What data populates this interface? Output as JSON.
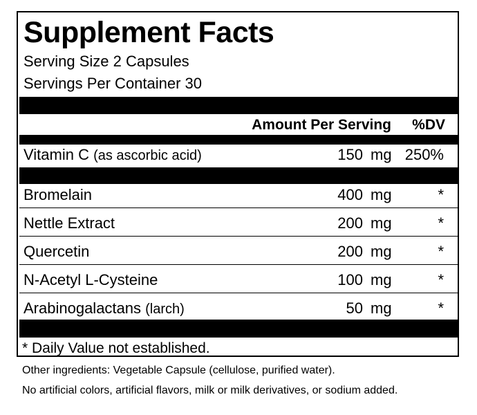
{
  "label": {
    "title": "Supplement Facts",
    "serving_size": "Serving Size 2 Capsules",
    "servings_per_container": "Servings Per Container 30",
    "header_amount": "Amount Per Serving",
    "header_dv": "%DV",
    "vitamin": {
      "name": "Vitamin C",
      "sub": "(as ascorbic acid)",
      "amount": "150",
      "unit": "mg",
      "dv": "250%"
    },
    "ingredients": [
      {
        "name": "Bromelain",
        "sub": "",
        "amount": "400",
        "unit": "mg",
        "dv": "*"
      },
      {
        "name": "Nettle Extract",
        "sub": "",
        "amount": "200",
        "unit": "mg",
        "dv": "*"
      },
      {
        "name": "Quercetin",
        "sub": "",
        "amount": "200",
        "unit": "mg",
        "dv": "*"
      },
      {
        "name": "N-Acetyl L-Cysteine",
        "sub": "",
        "amount": "100",
        "unit": "mg",
        "dv": "*"
      },
      {
        "name": "Arabinogalactans",
        "sub": "(larch)",
        "amount": "50",
        "unit": "mg",
        "dv": "*"
      }
    ],
    "footnote": "* Daily Value not established."
  },
  "other_ingredients": "Other ingredients: Vegetable Capsule (cellulose, purified water).",
  "notice": "No artificial colors, artificial flavors, milk or milk derivatives, or sodium added.",
  "colors": {
    "ink": "#000000",
    "background": "#ffffff"
  }
}
